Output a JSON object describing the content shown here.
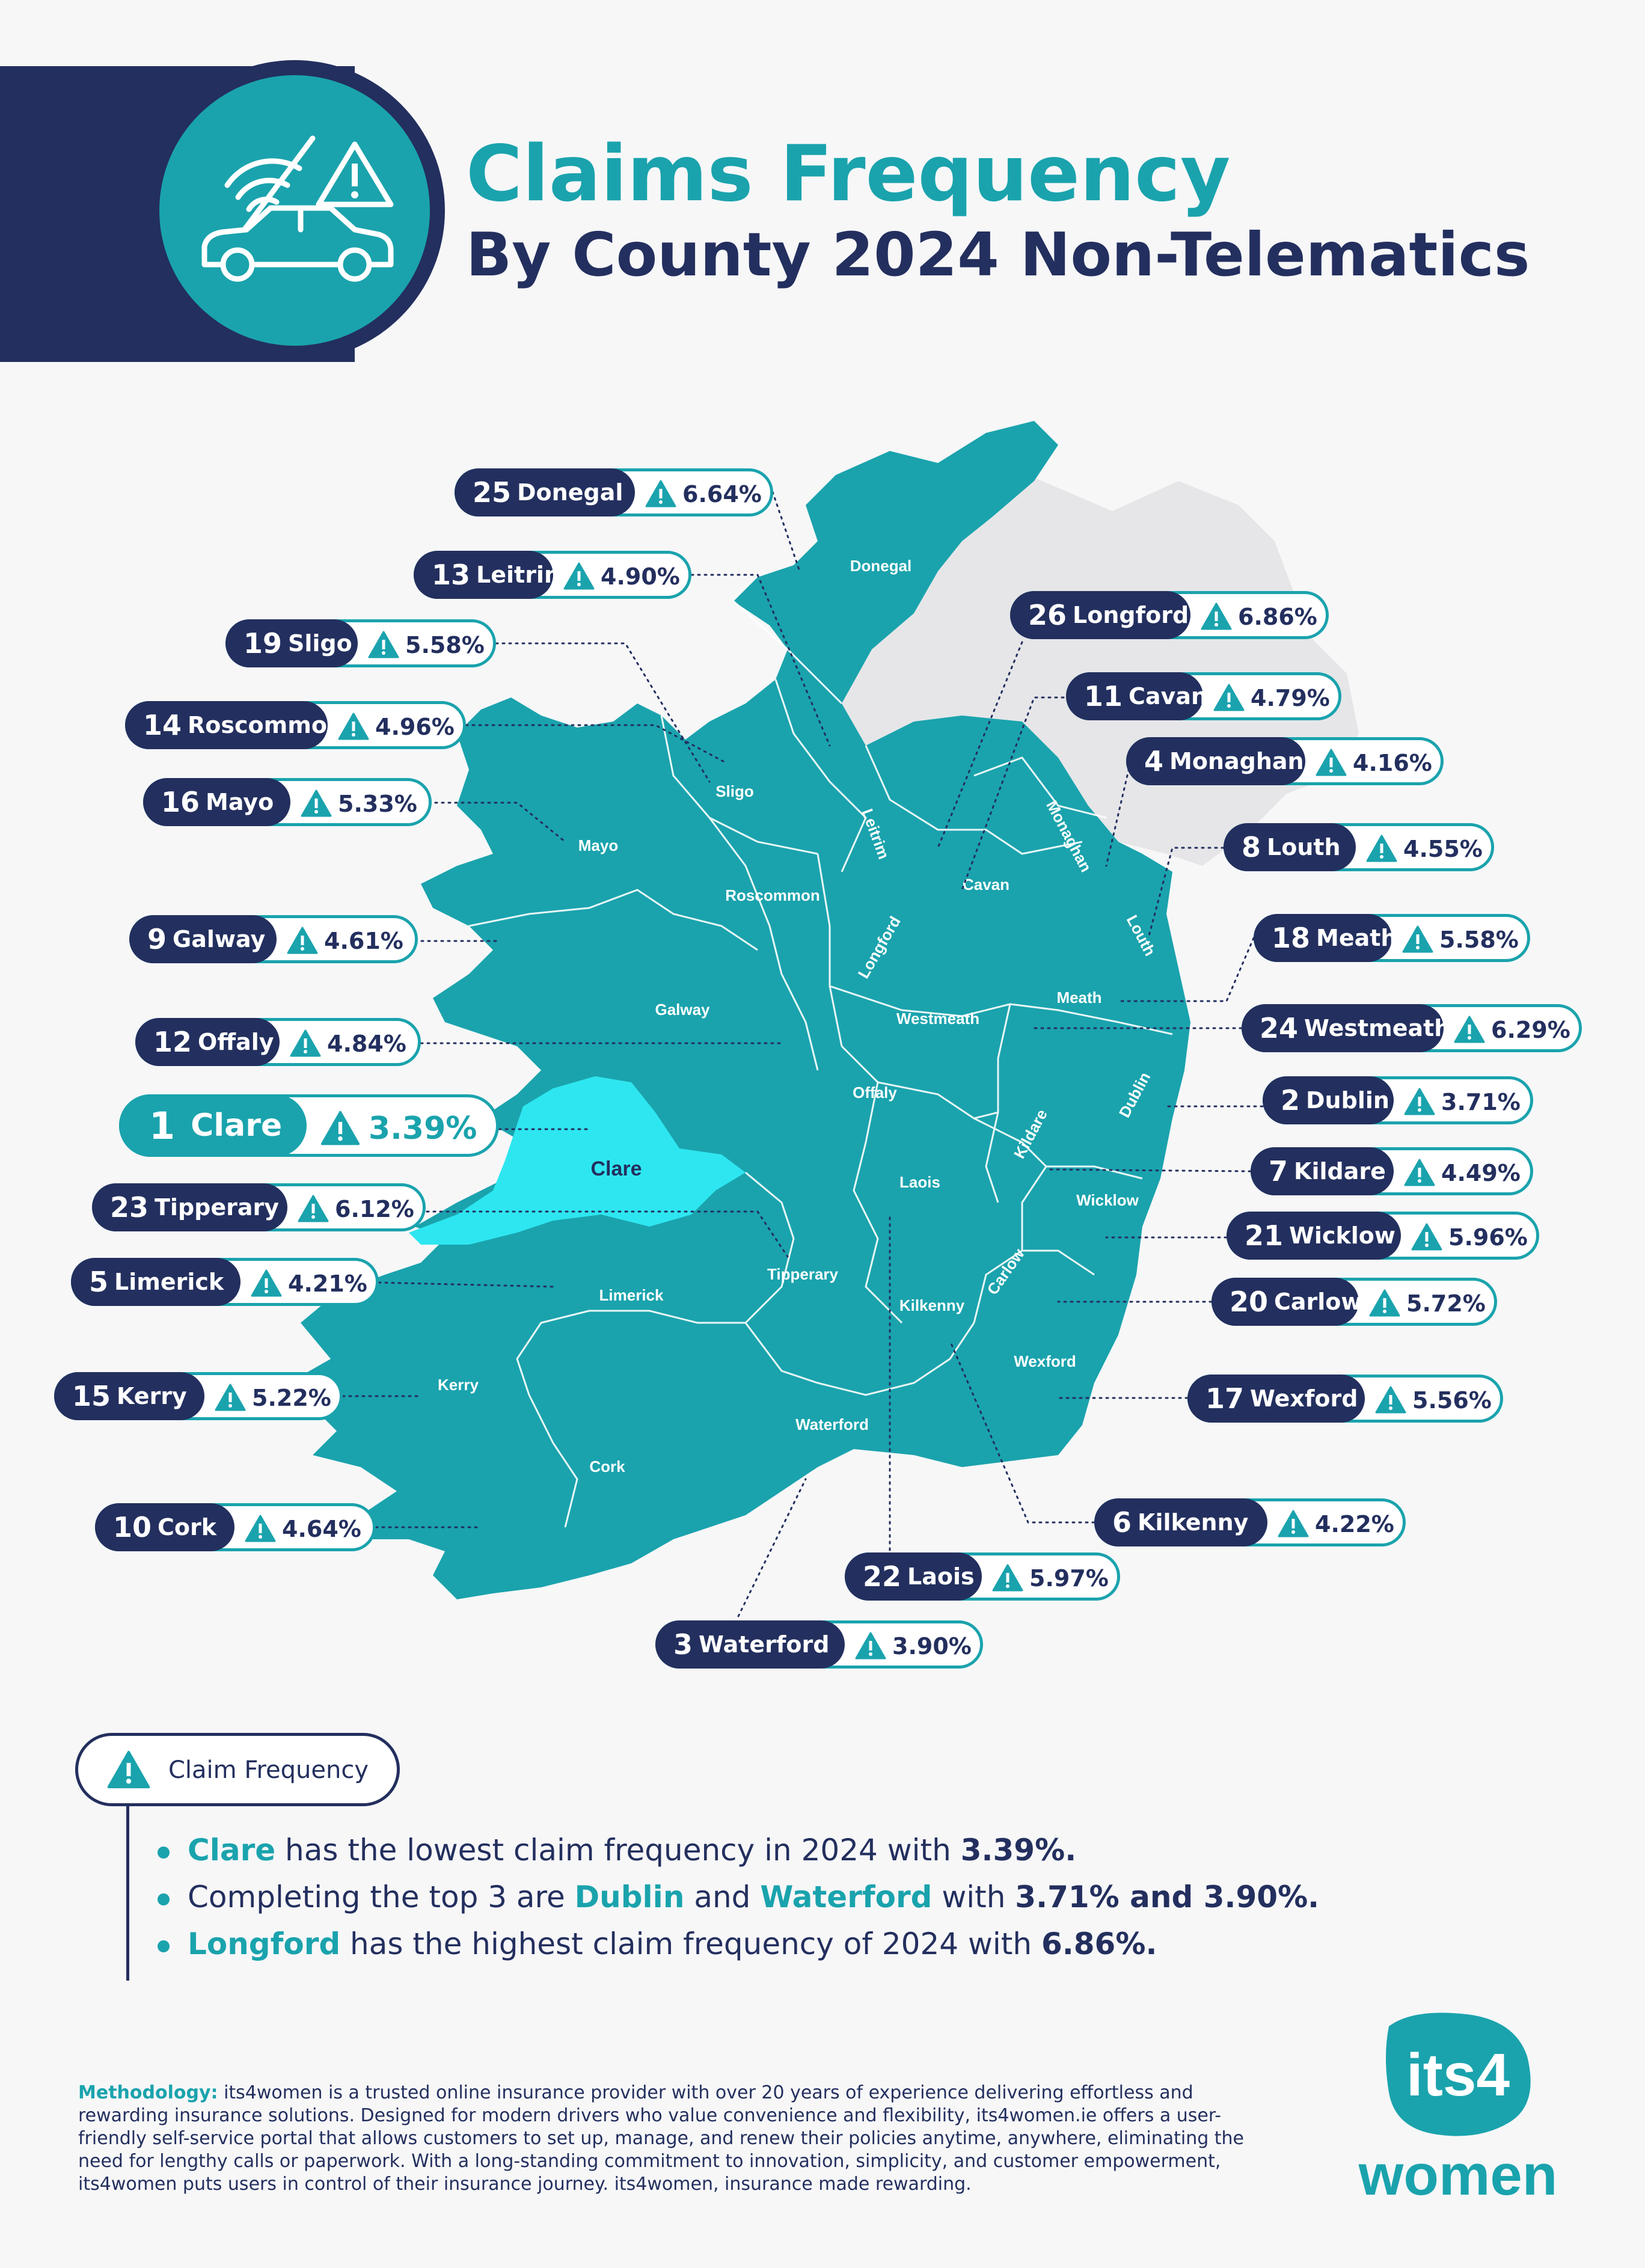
{
  "header": {
    "title_line1": "Claims Frequency",
    "title_line2": "By County 2024 Non-Telematics",
    "icon": "car-no-signal-warning-icon"
  },
  "colors": {
    "navy": "#232f5e",
    "teal": "#1aa3ad",
    "highlight_county": "#2ee6f0",
    "northern_ireland": "#e6e6e8",
    "background": "#f7f7f8"
  },
  "map": {
    "highlighted": "Clare",
    "greyed_region": "Northern Ireland (unlabeled)",
    "county_labels": [
      "Donegal",
      "Sligo",
      "Mayo",
      "Leitrim",
      "Cavan",
      "Monaghan",
      "Roscommon",
      "Longford",
      "Louth",
      "Galway",
      "Meath",
      "Westmeath",
      "Offaly",
      "Dublin",
      "Kildare",
      "Clare",
      "Laois",
      "Wicklow",
      "Tipperary",
      "Carlow",
      "Limerick",
      "Kilkenny",
      "Wexford",
      "Kerry",
      "Waterford",
      "Cork"
    ]
  },
  "rankings": [
    {
      "rank": "25",
      "county": "Donegal",
      "value": "6.64%"
    },
    {
      "rank": "13",
      "county": "Leitrim",
      "value": "4.90%"
    },
    {
      "rank": "19",
      "county": "Sligo",
      "value": "5.58%"
    },
    {
      "rank": "14",
      "county": "Roscommon",
      "value": "4.96%"
    },
    {
      "rank": "16",
      "county": "Mayo",
      "value": "5.33%"
    },
    {
      "rank": "9",
      "county": "Galway",
      "value": "4.61%"
    },
    {
      "rank": "12",
      "county": "Offaly",
      "value": "4.84%"
    },
    {
      "rank": "1",
      "county": "Clare",
      "value": "3.39%"
    },
    {
      "rank": "23",
      "county": "Tipperary",
      "value": "6.12%"
    },
    {
      "rank": "5",
      "county": "Limerick",
      "value": "4.21%"
    },
    {
      "rank": "15",
      "county": "Kerry",
      "value": "5.22%"
    },
    {
      "rank": "10",
      "county": "Cork",
      "value": "4.64%"
    },
    {
      "rank": "26",
      "county": "Longford",
      "value": "6.86%"
    },
    {
      "rank": "11",
      "county": "Cavan",
      "value": "4.79%"
    },
    {
      "rank": "4",
      "county": "Monaghan",
      "value": "4.16%"
    },
    {
      "rank": "8",
      "county": "Louth",
      "value": "4.55%"
    },
    {
      "rank": "18",
      "county": "Meath",
      "value": "5.58%"
    },
    {
      "rank": "24",
      "county": "Westmeath",
      "value": "6.29%"
    },
    {
      "rank": "2",
      "county": "Dublin",
      "value": "3.71%"
    },
    {
      "rank": "7",
      "county": "Kildare",
      "value": "4.49%"
    },
    {
      "rank": "21",
      "county": "Wicklow",
      "value": "5.96%"
    },
    {
      "rank": "20",
      "county": "Carlow",
      "value": "5.72%"
    },
    {
      "rank": "17",
      "county": "Wexford",
      "value": "5.56%"
    },
    {
      "rank": "6",
      "county": "Kilkenny",
      "value": "4.22%"
    },
    {
      "rank": "22",
      "county": "Laois",
      "value": "5.97%"
    },
    {
      "rank": "3",
      "county": "Waterford",
      "value": "3.90%"
    }
  ],
  "legend": {
    "label": "Claim Frequency",
    "icon": "warning-triangle-icon"
  },
  "bullets": [
    {
      "parts": [
        {
          "t": "Clare",
          "s": "hl"
        },
        {
          "t": " has the lowest claim frequency in 2024 with ",
          "s": ""
        },
        {
          "t": "3.39%.",
          "s": "bd"
        }
      ]
    },
    {
      "parts": [
        {
          "t": "Completing the top 3 are ",
          "s": ""
        },
        {
          "t": "Dublin",
          "s": "hl"
        },
        {
          "t": " and ",
          "s": ""
        },
        {
          "t": "Waterford",
          "s": "hl"
        },
        {
          "t": " with ",
          "s": ""
        },
        {
          "t": "3.71% and 3.90%.",
          "s": "bd"
        }
      ]
    },
    {
      "parts": [
        {
          "t": "Longford",
          "s": "hl"
        },
        {
          "t": " has the highest claim frequency of 2024 with ",
          "s": ""
        },
        {
          "t": "6.86%.",
          "s": "bd"
        }
      ]
    }
  ],
  "methodology": {
    "label": "Methodology:",
    "text": "its4women is a trusted online insurance provider with over 20 years of experience delivering effortless and rewarding insurance solutions. Designed for modern drivers who value convenience and flexibility, its4women.ie offers a user-friendly self-service portal that allows customers to set up, manage, and renew their policies anytime, anywhere, eliminating the need for lengthy calls or paperwork. With a long-standing commitment to innovation, simplicity, and customer empowerment, its4women puts users in control of their insurance journey. its4women, insurance made rewarding."
  },
  "logo": {
    "line1": "its4",
    "line2": "women"
  }
}
